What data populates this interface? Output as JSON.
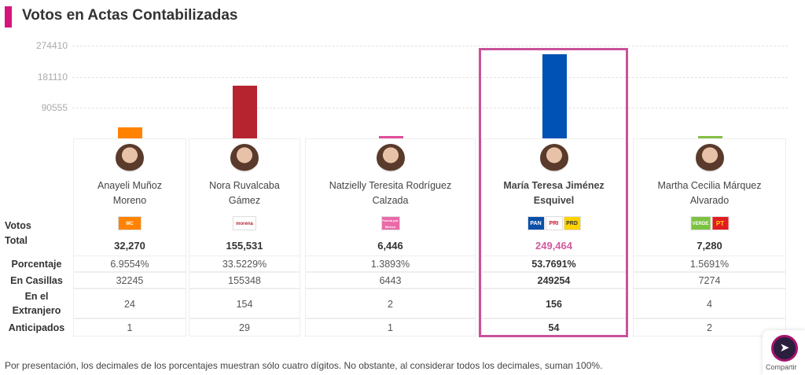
{
  "title": "Votos en Actas Contabilizadas",
  "chart_data": {
    "type": "bar",
    "yticks": [
      274410,
      181110,
      90555
    ],
    "ylim": [
      0,
      274410
    ],
    "grid": true,
    "categories": [
      "Anayeli Muñoz Moreno",
      "Nora Ruvalcaba Gámez",
      "Natzielly Teresita Rodríguez Calzada",
      "María Teresa Jiménez Esquivel",
      "Martha Cecilia Márquez Alvarado"
    ],
    "values": [
      32270,
      155531,
      6446,
      249464,
      7280
    ],
    "colors": [
      "#ff8300",
      "#b5242f",
      "#e04d9b",
      "#0052b4",
      "#86c049"
    ]
  },
  "labels": {
    "votos": "Votos",
    "total": "Total",
    "porcentaje": "Porcentaje",
    "casillas": "En Casillas",
    "extranjero_1": "En el",
    "extranjero_2": "Extranjero",
    "anticipados": "Anticipados"
  },
  "candidates": [
    {
      "name1": "Anayeli Muñoz",
      "name2": "Moreno",
      "parties": [
        "MC"
      ],
      "total": "32,270",
      "porcentaje": "6.9554%",
      "casillas": "32245",
      "extranjero": "24",
      "anticipados": "1"
    },
    {
      "name1": "Nora Ruvalcaba",
      "name2": "Gámez",
      "parties": [
        "morena"
      ],
      "total": "155,531",
      "porcentaje": "33.5229%",
      "casillas": "155348",
      "extranjero": "154",
      "anticipados": "29"
    },
    {
      "name1": "Natzielly Teresita Rodríguez",
      "name2": "Calzada",
      "parties": [
        "Fuerza por México"
      ],
      "total": "6,446",
      "porcentaje": "1.3893%",
      "casillas": "6443",
      "extranjero": "2",
      "anticipados": "1"
    },
    {
      "name1": "María Teresa Jiménez",
      "name2": "Esquivel",
      "parties": [
        "PAN",
        "PRI",
        "PRD"
      ],
      "total": "249,464",
      "porcentaje": "53.7691%",
      "casillas": "249254",
      "extranjero": "156",
      "anticipados": "54",
      "highlighted": true
    },
    {
      "name1": "Martha Cecilia Márquez",
      "name2": "Alvarado",
      "parties": [
        "VERDE",
        "PT"
      ],
      "total": "7,280",
      "porcentaje": "1.5691%",
      "casillas": "7274",
      "extranjero": "4",
      "anticipados": "2"
    }
  ],
  "note": "Por presentación, los decimales de los porcentajes muestran sólo cuatro dígitos. No obstante, al considerar todos los decimales, suman 100%.",
  "share": {
    "label": "Compartir",
    "icon": "share-icon"
  },
  "colors": {
    "accent": "#d6147e",
    "highlight": "#c9529b",
    "winner_total": "#d05a9e"
  }
}
